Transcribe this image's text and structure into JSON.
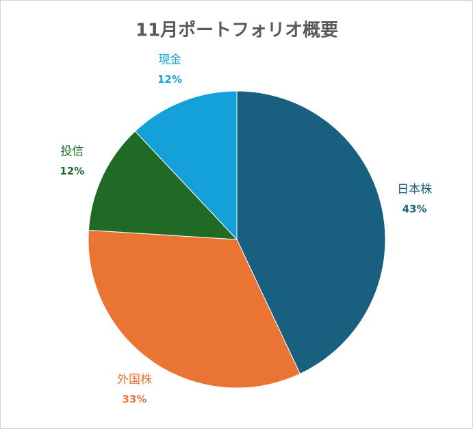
{
  "chart_data": {
    "type": "pie",
    "title": "11月ポートフォリオ概要",
    "categories": [
      "日本株",
      "外国株",
      "投信",
      "現金"
    ],
    "values": [
      43,
      33,
      12,
      12
    ],
    "value_labels": [
      "43%",
      "33%",
      "12%",
      "12%"
    ],
    "colors": [
      "#185f80",
      "#e97434",
      "#1f6b26",
      "#14a0d9"
    ]
  }
}
